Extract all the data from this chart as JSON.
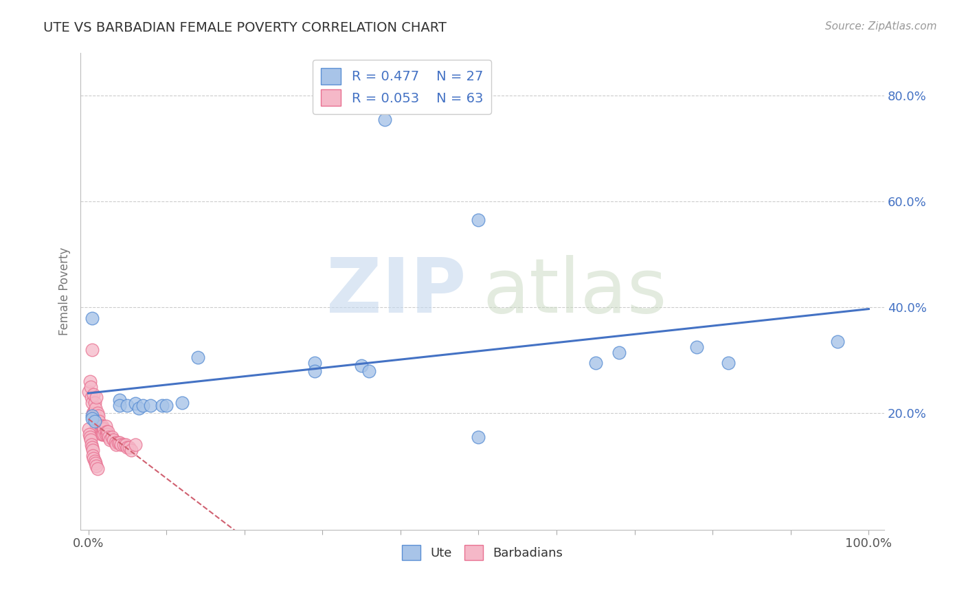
{
  "title": "UTE VS BARBADIAN FEMALE POVERTY CORRELATION CHART",
  "source_text": "Source: ZipAtlas.com",
  "ylabel": "Female Poverty",
  "xlim": [
    -0.01,
    1.02
  ],
  "ylim": [
    -0.02,
    0.88
  ],
  "xticks": [
    0.0,
    1.0
  ],
  "xticklabels": [
    "0.0%",
    "100.0%"
  ],
  "yticks": [
    0.2,
    0.4,
    0.6,
    0.8
  ],
  "yticklabels": [
    "20.0%",
    "40.0%",
    "60.0%",
    "80.0%"
  ],
  "legend_r_ute": "R = 0.477",
  "legend_n_ute": "N = 27",
  "legend_r_bar": "R = 0.053",
  "legend_n_bar": "N = 63",
  "ute_color": "#a8c4e8",
  "barbadian_color": "#f5b8c8",
  "ute_edge_color": "#5b8fd4",
  "barbadian_edge_color": "#e87090",
  "ute_line_color": "#4472c4",
  "barbadian_line_color": "#d06070",
  "ute_x": [
    0.38,
    0.005,
    0.14,
    0.29,
    0.29,
    0.35,
    0.36,
    0.5,
    0.65,
    0.68,
    0.78,
    0.82,
    0.96,
    0.04,
    0.04,
    0.05,
    0.06,
    0.065,
    0.07,
    0.08,
    0.095,
    0.1,
    0.12,
    0.5,
    0.005,
    0.005,
    0.008
  ],
  "ute_y": [
    0.755,
    0.38,
    0.305,
    0.295,
    0.28,
    0.29,
    0.28,
    0.155,
    0.295,
    0.315,
    0.325,
    0.295,
    0.335,
    0.225,
    0.215,
    0.215,
    0.218,
    0.21,
    0.215,
    0.215,
    0.215,
    0.215,
    0.22,
    0.565,
    0.195,
    0.19,
    0.185
  ],
  "barbadian_x": [
    0.0,
    0.002,
    0.003,
    0.004,
    0.005,
    0.005,
    0.006,
    0.007,
    0.007,
    0.008,
    0.008,
    0.009,
    0.01,
    0.01,
    0.01,
    0.011,
    0.012,
    0.013,
    0.013,
    0.014,
    0.015,
    0.015,
    0.016,
    0.017,
    0.017,
    0.018,
    0.018,
    0.019,
    0.02,
    0.02,
    0.022,
    0.022,
    0.023,
    0.024,
    0.025,
    0.026,
    0.028,
    0.03,
    0.032,
    0.035,
    0.036,
    0.038,
    0.04,
    0.042,
    0.045,
    0.048,
    0.05,
    0.052,
    0.055,
    0.06,
    0.0,
    0.001,
    0.002,
    0.003,
    0.004,
    0.005,
    0.006,
    0.006,
    0.007,
    0.008,
    0.009,
    0.01,
    0.012
  ],
  "barbadian_y": [
    0.24,
    0.26,
    0.25,
    0.23,
    0.32,
    0.22,
    0.2,
    0.235,
    0.2,
    0.22,
    0.185,
    0.21,
    0.23,
    0.19,
    0.175,
    0.19,
    0.2,
    0.195,
    0.175,
    0.185,
    0.175,
    0.165,
    0.17,
    0.175,
    0.16,
    0.175,
    0.16,
    0.17,
    0.17,
    0.16,
    0.175,
    0.16,
    0.165,
    0.16,
    0.165,
    0.155,
    0.15,
    0.155,
    0.15,
    0.145,
    0.14,
    0.145,
    0.145,
    0.14,
    0.14,
    0.14,
    0.135,
    0.135,
    0.13,
    0.14,
    0.17,
    0.16,
    0.155,
    0.15,
    0.14,
    0.135,
    0.13,
    0.12,
    0.115,
    0.11,
    0.105,
    0.1,
    0.095
  ]
}
